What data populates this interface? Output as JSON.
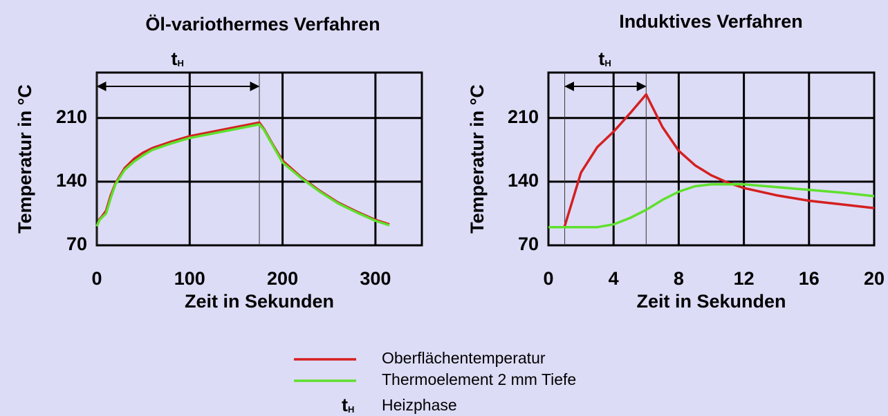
{
  "chart_data": [
    {
      "type": "line",
      "title": "Öl-variothermes Verfahren",
      "x_label": "Zeit in Sekunden",
      "y_label": "Temperatur in °C",
      "x": [
        0,
        3,
        5,
        10,
        15,
        20,
        30,
        40,
        50,
        60,
        80,
        100,
        125,
        150,
        175,
        180,
        190,
        200,
        220,
        240,
        260,
        280,
        300,
        315
      ],
      "series": [
        {
          "name": "Oberflächentemperatur",
          "color": "#d42020",
          "values": [
            91,
            99,
            101,
            108,
            125,
            138,
            155,
            165,
            172,
            177,
            184,
            190,
            195,
            200,
            205,
            198,
            180,
            163,
            145,
            130,
            117,
            107,
            98,
            93
          ]
        },
        {
          "name": "Thermoelement 2 mm Tiefe",
          "color": "#5fe02e",
          "values": [
            91,
            98,
            100,
            105,
            122,
            137,
            153,
            162,
            169,
            175,
            182,
            188,
            193,
            198,
            203,
            197,
            179,
            161,
            144,
            129,
            116,
            106,
            97,
            92
          ]
        }
      ],
      "xlim": [
        0,
        350
      ],
      "xticks": [
        0,
        100,
        200,
        300
      ],
      "ylim": [
        70,
        260
      ],
      "yticks": [
        70,
        140,
        210
      ],
      "grid": true,
      "heating_phase": [
        0,
        175
      ],
      "annotation": "t",
      "annotation_sub": "H"
    },
    {
      "type": "line",
      "title": "Induktives Verfahren",
      "x_label": "Zeit in Sekunden",
      "y_label": "Temperatur in °C",
      "x": [
        0,
        1,
        2,
        3,
        4,
        5,
        6,
        7,
        8,
        9,
        10,
        11,
        12,
        14,
        16,
        18,
        20
      ],
      "series": [
        {
          "name": "Oberflächentemperatur",
          "color": "#d42020",
          "values": [
            null,
            91,
            150,
            178,
            195,
            215,
            236,
            200,
            174,
            158,
            147,
            139,
            133,
            125,
            119,
            115,
            111
          ]
        },
        {
          "name": "Thermoelement 2 mm Tiefe",
          "color": "#5fe02e",
          "values": [
            90,
            90,
            90,
            90,
            93,
            100,
            109,
            120,
            129,
            135,
            137,
            137,
            137,
            134,
            131,
            128,
            124
          ]
        }
      ],
      "xlim": [
        0,
        20
      ],
      "xticks": [
        0,
        4,
        8,
        12,
        16,
        20
      ],
      "ylim": [
        70,
        260
      ],
      "yticks": [
        70,
        140,
        210
      ],
      "grid": true,
      "heating_phase": [
        1,
        6
      ],
      "annotation": "t",
      "annotation_sub": "H"
    }
  ],
  "legend_note": {
    "symbol": "t",
    "sub": "H",
    "text": "Heizphase"
  }
}
